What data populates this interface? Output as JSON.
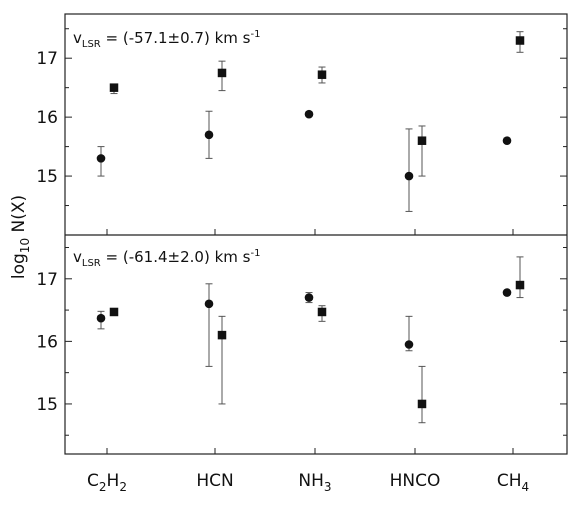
{
  "chart_data": {
    "type": "scatter",
    "ylabel_main": "log",
    "ylabel_sub": "10",
    "ylabel_rest": " N(X)",
    "categories": [
      {
        "main": "C",
        "sub1": "2",
        "mid": "H",
        "sub2": "2"
      },
      {
        "main": "HCN",
        "sub1": "",
        "mid": "",
        "sub2": ""
      },
      {
        "main": "NH",
        "sub1": "3",
        "mid": "",
        "sub2": ""
      },
      {
        "main": "HNCO",
        "sub1": "",
        "mid": "",
        "sub2": ""
      },
      {
        "main": "CH",
        "sub1": "4",
        "mid": "",
        "sub2": ""
      }
    ],
    "panels": [
      {
        "label_pre": "v",
        "label_sub": "LSR",
        "label_mid": " = (-57.1±0.7) km s",
        "label_sup": "-1",
        "ylim": [
          14.0,
          17.75
        ],
        "yticks": [
          "15",
          "16",
          "17"
        ],
        "circles": [
          {
            "cat": 0,
            "y": 15.3,
            "lo": 15.0,
            "hi": 15.5
          },
          {
            "cat": 1,
            "y": 15.7,
            "lo": 15.3,
            "hi": 16.1
          },
          {
            "cat": 2,
            "y": 16.05,
            "lo": null,
            "hi": null
          },
          {
            "cat": 3,
            "y": 15.0,
            "lo": 14.4,
            "hi": 15.8
          },
          {
            "cat": 4,
            "y": 15.6,
            "lo": null,
            "hi": null
          }
        ],
        "squares": [
          {
            "cat": 0,
            "y": 16.5,
            "lo": 16.4,
            "hi": 16.55
          },
          {
            "cat": 1,
            "y": 16.75,
            "lo": 16.45,
            "hi": 16.95
          },
          {
            "cat": 2,
            "y": 16.72,
            "lo": 16.58,
            "hi": 16.85
          },
          {
            "cat": 3,
            "y": 15.6,
            "lo": 15.0,
            "hi": 15.85
          },
          {
            "cat": 4,
            "y": 17.3,
            "lo": 17.1,
            "hi": 17.45
          }
        ]
      },
      {
        "label_pre": "v",
        "label_sub": "LSR",
        "label_mid": " = (-61.4±2.0) km s",
        "label_sup": "-1",
        "ylim": [
          14.2,
          17.7
        ],
        "yticks": [
          "15",
          "16",
          "17"
        ],
        "circles": [
          {
            "cat": 0,
            "y": 16.37,
            "lo": 16.2,
            "hi": 16.48
          },
          {
            "cat": 1,
            "y": 16.6,
            "lo": 15.6,
            "hi": 16.92
          },
          {
            "cat": 2,
            "y": 16.7,
            "lo": 16.62,
            "hi": 16.78
          },
          {
            "cat": 3,
            "y": 15.95,
            "lo": 15.85,
            "hi": 16.4
          },
          {
            "cat": 4,
            "y": 16.78,
            "lo": null,
            "hi": null
          }
        ],
        "squares": [
          {
            "cat": 0,
            "y": 16.47,
            "lo": null,
            "hi": null
          },
          {
            "cat": 1,
            "y": 16.1,
            "lo": 15.0,
            "hi": 16.4
          },
          {
            "cat": 2,
            "y": 16.47,
            "lo": 16.32,
            "hi": 16.57
          },
          {
            "cat": 3,
            "y": 15.0,
            "lo": 14.7,
            "hi": 15.6
          },
          {
            "cat": 4,
            "y": 16.9,
            "lo": 16.7,
            "hi": 17.35
          }
        ]
      }
    ]
  }
}
